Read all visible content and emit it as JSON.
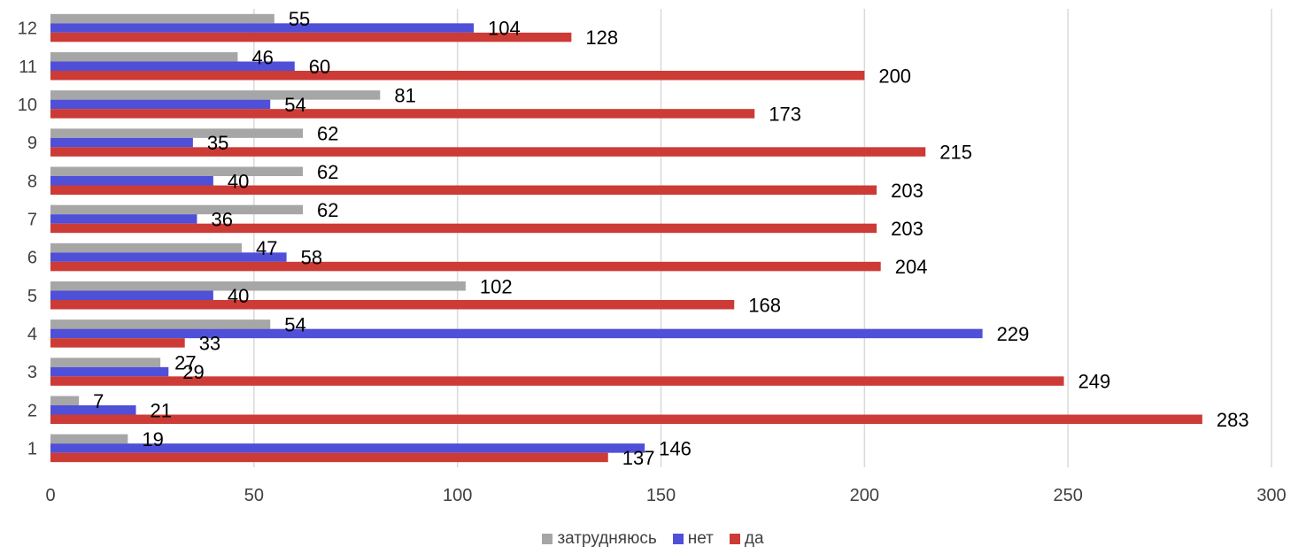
{
  "chart_data": {
    "type": "bar",
    "orientation": "horizontal",
    "categories": [
      "1",
      "2",
      "3",
      "4",
      "5",
      "6",
      "7",
      "8",
      "9",
      "10",
      "11",
      "12"
    ],
    "series": [
      {
        "name": "затрудняюсь",
        "color": "#a6a6a6",
        "values": [
          19,
          7,
          27,
          54,
          102,
          47,
          62,
          62,
          62,
          81,
          46,
          55
        ]
      },
      {
        "name": "нет",
        "color": "#4f4fd8",
        "values": [
          146,
          21,
          29,
          229,
          40,
          58,
          36,
          40,
          35,
          54,
          60,
          104
        ]
      },
      {
        "name": "да",
        "color": "#cc3b35",
        "values": [
          137,
          283,
          249,
          33,
          168,
          204,
          203,
          203,
          215,
          173,
          200,
          128
        ]
      }
    ],
    "xlim": [
      0,
      300
    ],
    "x_ticks": [
      "0",
      "50",
      "100",
      "150",
      "200",
      "250",
      "300"
    ],
    "grid": "vertical",
    "data_labels": true,
    "legend_position": "bottom"
  }
}
